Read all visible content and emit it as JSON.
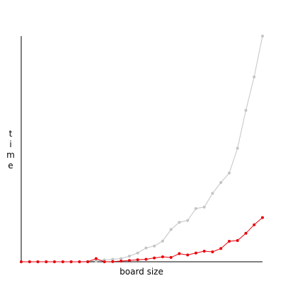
{
  "chart_data": {
    "type": "line",
    "title": "",
    "xlabel": "board size",
    "ylabel": "time",
    "grid": false,
    "legend": "none",
    "x": [
      1,
      2,
      3,
      4,
      5,
      6,
      7,
      8,
      9,
      10,
      11,
      12,
      13,
      14,
      15,
      16,
      17,
      18,
      19,
      20,
      21,
      22,
      23,
      24,
      25,
      26,
      27,
      28,
      29,
      30
    ],
    "xlim": [
      1,
      30
    ],
    "ylim": [
      0,
      100
    ],
    "series": [
      {
        "color": "#c4c4c4",
        "values": [
          0,
          0,
          0,
          0,
          0,
          0,
          0,
          0,
          0.2,
          0.4,
          0.8,
          1.1,
          1.4,
          2.5,
          3.9,
          6.1,
          7.0,
          9.2,
          14.3,
          17.5,
          18.3,
          23.6,
          24.2,
          30.3,
          35.1,
          39.3,
          50.3,
          67.1,
          81.9,
          100
        ]
      },
      {
        "color": "#e8000b",
        "values": [
          0,
          0,
          0,
          0,
          0,
          0,
          0,
          0,
          0,
          1.4,
          0,
          0.1,
          0.3,
          0.6,
          0.9,
          1.1,
          1.7,
          2.2,
          1.9,
          3.6,
          3.0,
          3.9,
          4.7,
          4.4,
          5.9,
          9.1,
          9.4,
          12.6,
          16.4,
          19.6
        ]
      }
    ]
  }
}
